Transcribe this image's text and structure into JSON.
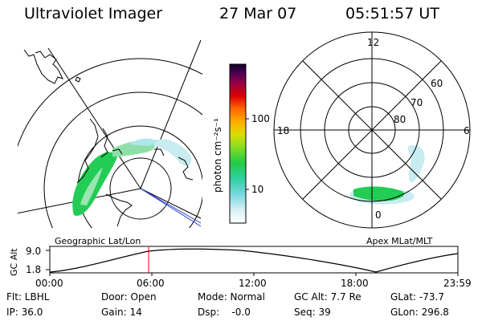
{
  "header": {
    "instrument": "Ultraviolet Imager",
    "date": "27 Mar 07",
    "time": "05:51:57 UT"
  },
  "left_panel": {
    "label": "Geographic Lat/Lon"
  },
  "right_panel": {
    "label": "Apex MLat/MLT",
    "mlt_labels": {
      "top": "12",
      "left": "18",
      "right": "6",
      "bottom": "0"
    },
    "lat_labels": [
      "60",
      "70",
      "80"
    ]
  },
  "colorbar": {
    "unit_label": "photon cm⁻²s⁻¹",
    "ticks": [
      "100",
      "10"
    ],
    "scale": "log"
  },
  "altitude_plot": {
    "ylabel": "GC Alt",
    "yticks": [
      "9.0",
      "1.8"
    ],
    "xticks": [
      "00:00",
      "06:00",
      "12:00",
      "18:00",
      "23:59"
    ],
    "marker_time": "05:51:57",
    "marker_color": "#ff0000"
  },
  "info": {
    "flt": "Flt: LBHL",
    "ip": "IP: 36.0",
    "door": "Door: Open",
    "gain": "Gain: 14",
    "mode": "Mode: Normal",
    "dsp": "Dsp:    -0.0",
    "gcalt": "GC Alt: 7.7 Re",
    "seq": "Seq: 39",
    "glat": "GLat: -73.7",
    "glon": "GLon: 296.8"
  },
  "colors": {
    "aurora_main": "#22cc55",
    "aurora_mid": "#88e0a0",
    "aurora_faint": "#c8ecf0",
    "projection_line": "#2a3fd0"
  }
}
